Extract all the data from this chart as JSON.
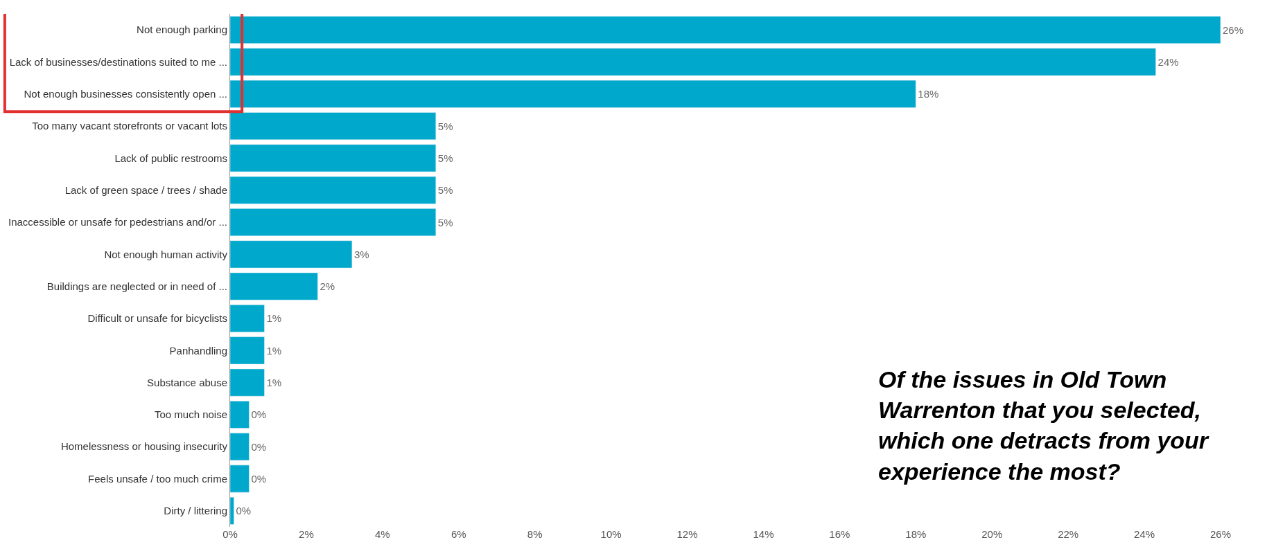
{
  "chart_data": {
    "type": "bar",
    "orientation": "horizontal",
    "categories": [
      "Not enough parking",
      "Lack of businesses/destinations suited to me ...",
      "Not enough businesses consistently open ...",
      "Too many vacant storefronts or vacant lots",
      "Lack of public restrooms",
      "Lack of green space / trees / shade",
      "Inaccessible or unsafe for pedestrians and/or ...",
      "Not enough human activity",
      "Buildings are neglected or in need of ...",
      "Difficult or unsafe for bicyclists",
      "Panhandling",
      "Substance abuse",
      "Too much noise",
      "Homelessness or housing insecurity",
      "Feels unsafe / too much crime",
      "Dirty / littering"
    ],
    "values": [
      26.0,
      24.3,
      18.0,
      5.4,
      5.4,
      5.4,
      5.4,
      3.2,
      2.3,
      0.9,
      0.9,
      0.9,
      0.5,
      0.5,
      0.5,
      0.1
    ],
    "value_labels": [
      "26%",
      "24%",
      "18%",
      "5%",
      "5%",
      "5%",
      "5%",
      "3%",
      "2%",
      "1%",
      "1%",
      "1%",
      "0%",
      "0%",
      "0%",
      "0%"
    ],
    "color": "#00a9cc",
    "xlim": [
      0,
      26
    ],
    "xticks": [
      {
        "value": 0,
        "label": "0%"
      },
      {
        "value": 2,
        "label": "2%"
      },
      {
        "value": 4,
        "label": "4%"
      },
      {
        "value": 6,
        "label": "6%"
      },
      {
        "value": 8,
        "label": "8%"
      },
      {
        "value": 10,
        "label": "10%"
      },
      {
        "value": 12,
        "label": "12%"
      },
      {
        "value": 14,
        "label": "14%"
      },
      {
        "value": 16,
        "label": "16%"
      },
      {
        "value": 18,
        "label": "18%"
      },
      {
        "value": 20,
        "label": "20%"
      },
      {
        "value": 22,
        "label": "22%"
      },
      {
        "value": 24,
        "label": "24%"
      },
      {
        "value": 26,
        "label": "26%"
      }
    ],
    "annotations": [
      "Of the issues in Old Town Warrenton that you selected, which one detracts from your experience the most?"
    ]
  }
}
